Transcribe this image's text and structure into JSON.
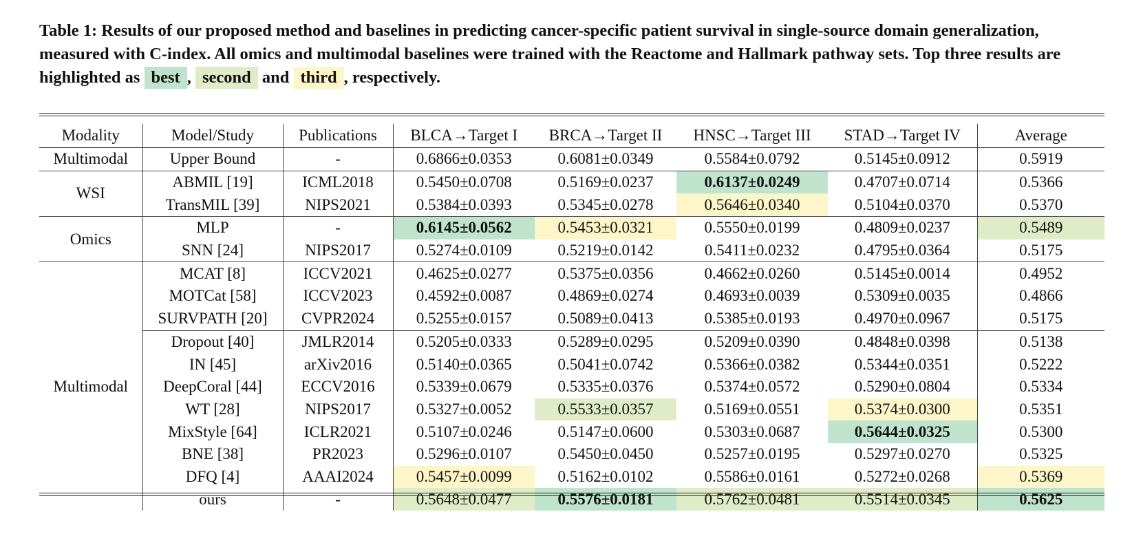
{
  "caption": {
    "text": "Table 1: Results of our proposed method and baselines in predicting cancer-specific patient survival in single-source domain generalization, measured with C-index. All omics and multimodal baselines were trained with the Reactome and Hallmark pathway sets. Top three results are highlighted as",
    "best_label": "best",
    "comma": ",",
    "second_label": "second",
    "and": "and",
    "third_label": "third",
    "tail": ", respectively."
  },
  "colors": {
    "best": "#bfe3cc",
    "second": "#e0ecc8",
    "third": "#fcf6c8",
    "rule": "#222222"
  },
  "header": [
    "Modality",
    "Model/Study",
    "Publications",
    "BLCA→Target I",
    "BRCA→Target II",
    "HNSC→Target III",
    "STAD→Target IV",
    "Average"
  ],
  "modalities": {
    "upper": "Multimodal",
    "wsi": "WSI",
    "omics": "Omics",
    "multimodal": "Multimodal"
  },
  "rows": [
    {
      "model": "Upper Bound",
      "pub": "-",
      "v": [
        "0.6866±0.0353",
        "0.6081±0.0349",
        "0.5584±0.0792",
        "0.5145±0.0912"
      ],
      "avg": "0.5919"
    },
    {
      "model": "ABMIL [19]",
      "pub": "ICML2018",
      "v": [
        "0.5450±0.0708",
        "0.5169±0.0237",
        "0.6137±0.0249",
        "0.4707±0.0714"
      ],
      "avg": "0.5366"
    },
    {
      "model": "TransMIL [39]",
      "pub": "NIPS2021",
      "v": [
        "0.5384±0.0393",
        "0.5345±0.0278",
        "0.5646±0.0340",
        "0.5104±0.0370"
      ],
      "avg": "0.5370"
    },
    {
      "model": "MLP",
      "pub": "-",
      "v": [
        "0.6145±0.0562",
        "0.5453±0.0321",
        "0.5550±0.0199",
        "0.4809±0.0237"
      ],
      "avg": "0.5489"
    },
    {
      "model": "SNN [24]",
      "pub": "NIPS2017",
      "v": [
        "0.5274±0.0109",
        "0.5219±0.0142",
        "0.5411±0.0232",
        "0.4795±0.0364"
      ],
      "avg": "0.5175"
    },
    {
      "model": "MCAT [8]",
      "pub": "ICCV2021",
      "v": [
        "0.4625±0.0277",
        "0.5375±0.0356",
        "0.4662±0.0260",
        "0.5145±0.0014"
      ],
      "avg": "0.4952"
    },
    {
      "model": "MOTCat [58]",
      "pub": "ICCV2023",
      "v": [
        "0.4592±0.0087",
        "0.4869±0.0274",
        "0.4693±0.0039",
        "0.5309±0.0035"
      ],
      "avg": "0.4866"
    },
    {
      "model": "SURVPATH [20]",
      "pub": "CVPR2024",
      "v": [
        "0.5255±0.0157",
        "0.5089±0.0413",
        "0.5385±0.0193",
        "0.4970±0.0967"
      ],
      "avg": "0.5175"
    },
    {
      "model": "Dropout [40]",
      "pub": "JMLR2014",
      "v": [
        "0.5205±0.0333",
        "0.5289±0.0295",
        "0.5209±0.0390",
        "0.4848±0.0398"
      ],
      "avg": "0.5138"
    },
    {
      "model": "IN [45]",
      "pub": "arXiv2016",
      "v": [
        "0.5140±0.0365",
        "0.5041±0.0742",
        "0.5366±0.0382",
        "0.5344±0.0351"
      ],
      "avg": "0.5222"
    },
    {
      "model": "DeepCoral [44]",
      "pub": "ECCV2016",
      "v": [
        "0.5339±0.0679",
        "0.5335±0.0376",
        "0.5374±0.0572",
        "0.5290±0.0804"
      ],
      "avg": "0.5334"
    },
    {
      "model": "WT [28]",
      "pub": "NIPS2017",
      "v": [
        "0.5327±0.0052",
        "0.5533±0.0357",
        "0.5169±0.0551",
        "0.5374±0.0300"
      ],
      "avg": "0.5351"
    },
    {
      "model": "MixStyle [64]",
      "pub": "ICLR2021",
      "v": [
        "0.5107±0.0246",
        "0.5147±0.0600",
        "0.5303±0.0687",
        "0.5644±0.0325"
      ],
      "avg": "0.5300"
    },
    {
      "model": "BNE [38]",
      "pub": "PR2023",
      "v": [
        "0.5296±0.0107",
        "0.5450±0.0450",
        "0.5257±0.0195",
        "0.5297±0.0270"
      ],
      "avg": "0.5325"
    },
    {
      "model": "DFQ [4]",
      "pub": "AAAI2024",
      "v": [
        "0.5457±0.0099",
        "0.5162±0.0102",
        "0.5586±0.0161",
        "0.5272±0.0268"
      ],
      "avg": "0.5369"
    },
    {
      "model": "ours",
      "pub": "-",
      "v": [
        "0.5648±0.0477",
        "0.5576±0.0181",
        "0.5762±0.0481",
        "0.5514±0.0345"
      ],
      "avg": "0.5625"
    }
  ]
}
